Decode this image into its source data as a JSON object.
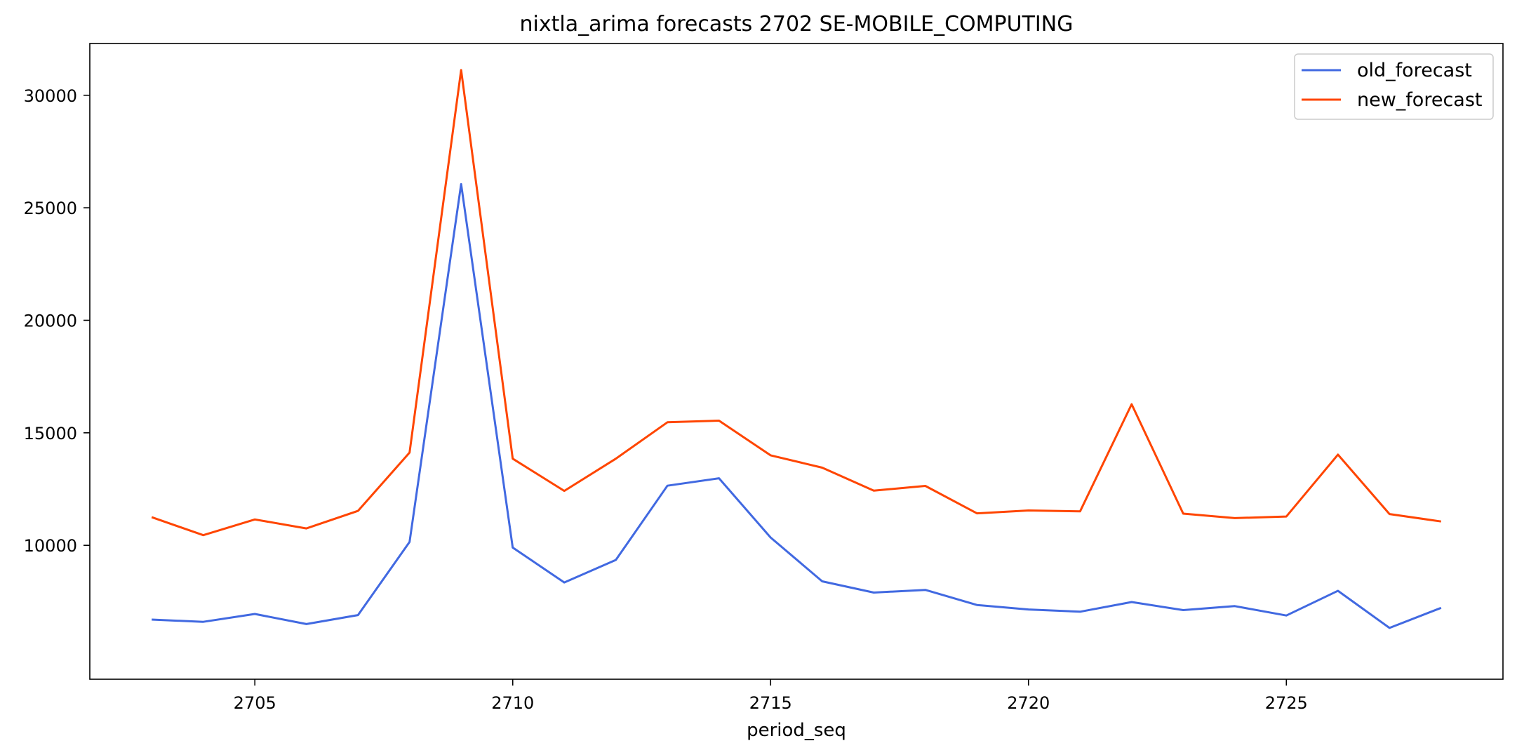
{
  "chart_data": {
    "type": "line",
    "title": "nixtla_arima forecasts 2702 SE-MOBILE_COMPUTING",
    "xlabel": "period_seq",
    "ylabel": "",
    "x": [
      2703,
      2704,
      2705,
      2706,
      2707,
      2708,
      2709,
      2710,
      2711,
      2712,
      2713,
      2714,
      2715,
      2716,
      2717,
      2718,
      2719,
      2720,
      2721,
      2722,
      2723,
      2724,
      2725,
      2726,
      2727,
      2728
    ],
    "xlim": [
      2701.8,
      2729.2
    ],
    "ylim": [
      4050,
      32300
    ],
    "xticks": [
      2705,
      2710,
      2715,
      2720,
      2725
    ],
    "yticks": [
      10000,
      15000,
      20000,
      25000,
      30000
    ],
    "grid": false,
    "legend_position": "top-right",
    "series": [
      {
        "name": "old_forecast",
        "color": "#4169e1",
        "values": [
          6700,
          6600,
          6950,
          6500,
          6900,
          10150,
          26050,
          9900,
          8350,
          9350,
          12650,
          12980,
          10350,
          8400,
          7900,
          8020,
          7350,
          7150,
          7050,
          7480,
          7120,
          7300,
          6880,
          7980,
          6330,
          7220
        ]
      },
      {
        "name": "new_forecast",
        "color": "#ff4500",
        "values": [
          11250,
          10450,
          11150,
          10750,
          11530,
          14120,
          31120,
          13850,
          12420,
          13850,
          15470,
          15540,
          14000,
          13450,
          12430,
          12640,
          11420,
          11550,
          11510,
          16270,
          11410,
          11210,
          11280,
          14030,
          11390,
          11060
        ]
      }
    ]
  }
}
